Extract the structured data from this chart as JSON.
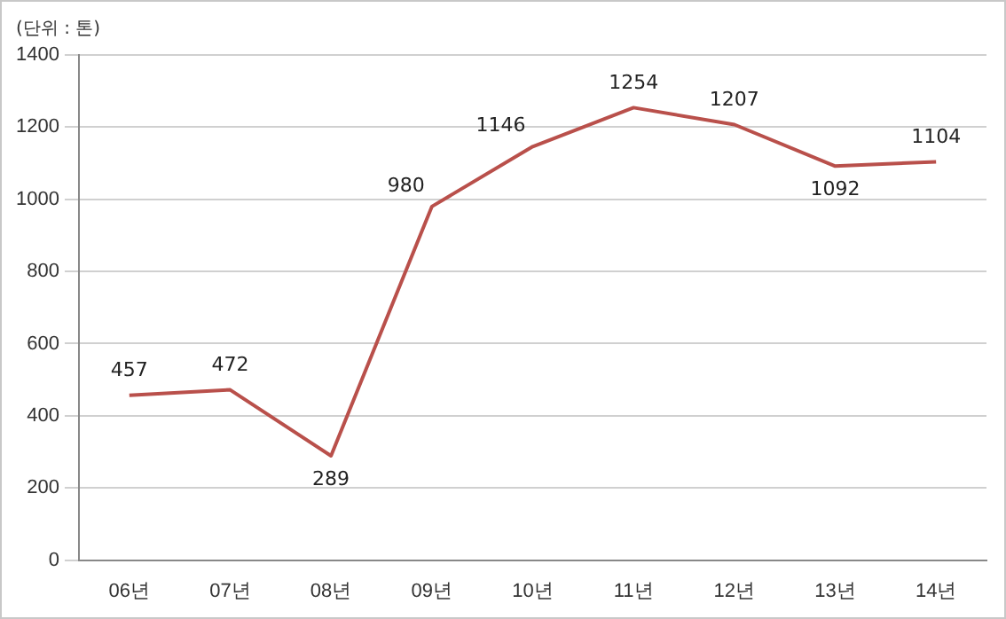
{
  "chart_data": {
    "type": "line",
    "ylabel": "(단위 : 톤)",
    "categories": [
      "06년",
      "07년",
      "08년",
      "09년",
      "10년",
      "11년",
      "12년",
      "13년",
      "14년"
    ],
    "series": [
      {
        "color": "#b9504b",
        "values": [
          457,
          472,
          289,
          980,
          1146,
          1254,
          1207,
          1092,
          1104
        ]
      }
    ],
    "ylim": [
      0,
      1400
    ],
    "yticks": [
      0,
      200,
      400,
      600,
      800,
      1000,
      1200,
      1400
    ],
    "grid": "y",
    "legend": false,
    "marker": "none",
    "line_style": "solid",
    "data_labels": true
  }
}
